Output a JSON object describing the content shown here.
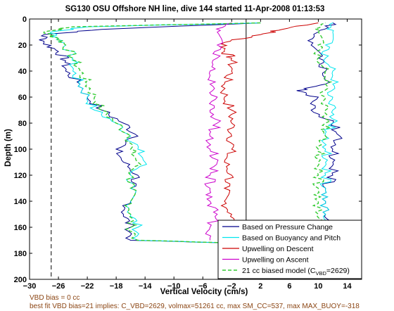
{
  "chart_data": {
    "type": "line",
    "title": "SG130 OSU Offshore NH line, dive 144 started 11-Apr-2008 01:13:53",
    "xlabel": "Vertical Velocity (cm/s)",
    "ylabel": "Depth (m)",
    "xlim": [
      -30,
      16
    ],
    "ylim": [
      0,
      200
    ],
    "y_reversed": true,
    "xticks": [
      -30,
      -26,
      -22,
      -18,
      -14,
      -10,
      -6,
      -2,
      2,
      6,
      10,
      14
    ],
    "yticks": [
      0,
      20,
      40,
      60,
      80,
      100,
      120,
      140,
      160,
      180,
      200
    ],
    "grid": false,
    "legend_position": "bottom-right",
    "vlines": [
      {
        "x": -27,
        "style": "dashed",
        "color": "#000000"
      },
      {
        "x": 0,
        "style": "solid",
        "color": "#000000"
      }
    ],
    "series": [
      {
        "name": "Based on Pressure Change",
        "color": "#00008B",
        "style": "solid",
        "descent": {
          "y": [
            3,
            8,
            12,
            18,
            25,
            32,
            40,
            50,
            60,
            70,
            80,
            90,
            100,
            110,
            120,
            130,
            140,
            150,
            160,
            170,
            174
          ],
          "x": [
            2,
            -20,
            -28,
            -28,
            -26,
            -25,
            -25,
            -23,
            -22,
            -20,
            -17,
            -15,
            -18,
            -17,
            -15,
            -16,
            -16,
            -17,
            -16,
            -16,
            10
          ]
        },
        "ascent": {
          "y": [
            170,
            160,
            150,
            140,
            130,
            120,
            110,
            100,
            90,
            80,
            70,
            60,
            55,
            50,
            40,
            30,
            20,
            10,
            3
          ],
          "x": [
            10,
            11,
            11,
            11,
            11,
            12,
            12,
            12,
            13,
            12,
            9,
            10,
            7,
            11,
            11,
            10,
            9,
            10,
            12
          ]
        }
      },
      {
        "name": "Based on Buoyancy and Pitch",
        "color": "#00E5EE",
        "style": "solid",
        "descent": {
          "y": [
            3,
            6,
            10,
            15,
            20,
            30,
            40,
            50,
            60,
            70,
            80,
            90,
            100,
            110,
            120,
            130,
            140,
            150,
            160,
            170,
            174
          ],
          "x": [
            2,
            -22,
            -27,
            -26,
            -25,
            -24,
            -24,
            -23,
            -22,
            -21,
            -18,
            -16,
            -15,
            -14,
            -16,
            -16,
            -16,
            -16,
            -15,
            -15,
            10
          ]
        },
        "ascent": {
          "y": [
            170,
            160,
            150,
            140,
            130,
            120,
            110,
            100,
            90,
            80,
            70,
            60,
            50,
            40,
            30,
            20,
            10,
            3
          ],
          "x": [
            10,
            10,
            11,
            11,
            11,
            11,
            11,
            11,
            11,
            12,
            12,
            12,
            12,
            12,
            11,
            11,
            12,
            12
          ]
        }
      },
      {
        "name": "Upwelling on Descent",
        "color": "#CC0000",
        "style": "solid",
        "descent": {
          "y": [
            3,
            8,
            12,
            18,
            25,
            30,
            40,
            50,
            60,
            70,
            80,
            90,
            100,
            110,
            120,
            130,
            140,
            150,
            160,
            170
          ],
          "x": [
            10,
            5,
            2,
            -3,
            -3,
            -2,
            -2,
            -3,
            -3,
            -2,
            -2,
            -2,
            -2,
            -3,
            -2,
            -3,
            -3,
            -2,
            -2,
            -2
          ]
        }
      },
      {
        "name": "Upwelling on Ascent",
        "color": "#CC00CC",
        "style": "solid",
        "ascent": {
          "y": [
            170,
            160,
            150,
            140,
            130,
            120,
            110,
            100,
            90,
            80,
            70,
            60,
            50,
            40,
            30,
            20,
            10,
            3
          ],
          "x": [
            -5,
            -5,
            -4,
            -5,
            -5,
            -5,
            -4,
            -5,
            -5,
            -4,
            -5,
            -4,
            -5,
            -5,
            -4,
            -4,
            -4,
            -2
          ]
        }
      },
      {
        "name": "21 cc biased model (CVBD=2629)",
        "color": "#33CC33",
        "style": "dashed",
        "descent": {
          "y": [
            3,
            6,
            10,
            15,
            20,
            30,
            40,
            50,
            60,
            70,
            80,
            90,
            100,
            110,
            120,
            130,
            140,
            150,
            160,
            170,
            174
          ],
          "x": [
            2,
            -24,
            -28,
            -26,
            -25,
            -24,
            -23,
            -22,
            -21,
            -20,
            -18,
            -16,
            -16,
            -15,
            -16,
            -16,
            -16,
            -16,
            -16,
            -15,
            10
          ]
        },
        "ascent": {
          "y": [
            170,
            160,
            150,
            140,
            130,
            120,
            110,
            100,
            90,
            80,
            70,
            60,
            50,
            40,
            30,
            20,
            10,
            3
          ],
          "x": [
            10,
            10,
            10,
            10,
            10,
            10,
            10,
            10,
            11,
            11,
            11,
            11,
            11,
            11,
            10,
            10,
            10,
            11
          ]
        }
      }
    ],
    "legend": [
      {
        "label": "Based on Pressure Change",
        "color": "#00008B",
        "dash": false
      },
      {
        "label": "Based on Buoyancy and Pitch",
        "color": "#00E5EE",
        "dash": false
      },
      {
        "label": "Upwelling on Descent",
        "color": "#CC0000",
        "dash": false
      },
      {
        "label": "Upwelling on Ascent",
        "color": "#CC00CC",
        "dash": false
      },
      {
        "label_main": "21 cc biased model (C",
        "label_sub": "VBD",
        "label_tail": "=2629)",
        "color": "#33CC33",
        "dash": true
      }
    ],
    "footnotes": [
      "VBD bias = 0 cc",
      "best fit VBD bias=21 implies: C_VBD=2629, volmax=51261 cc, max SM_CC=537, max MAX_BUOY=-318"
    ]
  }
}
